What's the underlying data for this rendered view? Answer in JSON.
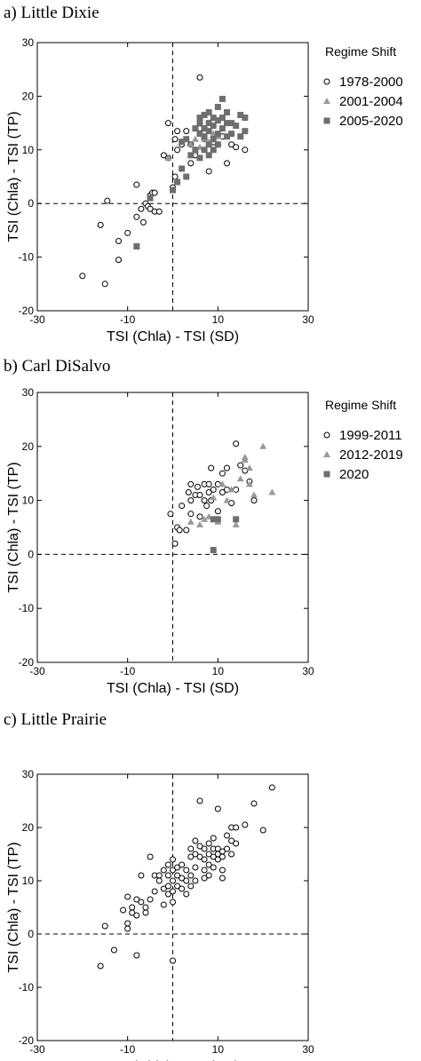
{
  "chart_data": [
    {
      "type": "scatter",
      "title": "a) Little Dixie",
      "xlabel": "TSI (Chla) - TSI (SD)",
      "ylabel": "TSI (Chla) - TSI (TP)",
      "xlim": [
        -30,
        30
      ],
      "ylim": [
        -20,
        30
      ],
      "xticks": [
        "-30",
        "-10",
        "10",
        "30"
      ],
      "yticks": [
        "-20",
        "-10",
        "0",
        "10",
        "20",
        "30"
      ],
      "grid": false,
      "reference_lines": {
        "x": 0,
        "y": 0
      },
      "legend_title": "Regime Shift",
      "legend_position": "right",
      "series": [
        {
          "name": "1978-2000",
          "marker": "circle-open",
          "color": "#000000",
          "points": [
            [
              -20,
              -13.5
            ],
            [
              -15,
              -15
            ],
            [
              -16,
              -4
            ],
            [
              -14.5,
              0.5
            ],
            [
              -12,
              -7
            ],
            [
              -12,
              -10.5
            ],
            [
              -10,
              -5.5
            ],
            [
              -8,
              -2.5
            ],
            [
              -8,
              3.5
            ],
            [
              -7,
              -1
            ],
            [
              -6.5,
              -3.5
            ],
            [
              -6,
              0
            ],
            [
              -5.5,
              -0.5
            ],
            [
              -5,
              1.5
            ],
            [
              -5,
              -1
            ],
            [
              -4.5,
              2
            ],
            [
              -4,
              2
            ],
            [
              -4,
              -1.5
            ],
            [
              -3,
              -1.5
            ],
            [
              -2,
              9
            ],
            [
              -1,
              8.5
            ],
            [
              -1,
              15
            ],
            [
              0,
              3
            ],
            [
              0.5,
              5
            ],
            [
              0.5,
              12
            ],
            [
              1,
              10
            ],
            [
              1,
              13.5
            ],
            [
              2,
              11
            ],
            [
              3,
              13.5
            ],
            [
              4,
              7.5
            ],
            [
              4,
              11
            ],
            [
              5,
              9
            ],
            [
              6,
              23.5
            ],
            [
              6,
              14
            ],
            [
              7,
              12
            ],
            [
              8,
              6
            ],
            [
              9,
              10.5
            ],
            [
              10,
              11
            ],
            [
              11,
              12.5
            ],
            [
              12,
              7.5
            ],
            [
              13,
              11
            ],
            [
              14,
              10.5
            ],
            [
              16,
              10
            ]
          ]
        },
        {
          "name": "2001-2004",
          "marker": "triangle",
          "color": "#9a9a9a",
          "points": [
            [
              -1,
              8.5
            ],
            [
              4,
              11
            ],
            [
              5,
              12
            ],
            [
              6,
              10.5
            ],
            [
              7,
              12
            ],
            [
              8,
              11.5
            ],
            [
              9,
              13
            ],
            [
              10,
              12.5
            ]
          ]
        },
        {
          "name": "2005-2020",
          "marker": "square",
          "color": "#6e6e6e",
          "points": [
            [
              -8,
              -8
            ],
            [
              -5,
              1
            ],
            [
              0,
              2.5
            ],
            [
              1,
              4
            ],
            [
              2,
              6.5
            ],
            [
              2,
              11.5
            ],
            [
              3,
              12
            ],
            [
              3,
              5
            ],
            [
              4,
              9
            ],
            [
              5,
              10
            ],
            [
              5,
              14
            ],
            [
              6,
              8.5
            ],
            [
              6,
              13
            ],
            [
              6,
              15
            ],
            [
              6,
              16
            ],
            [
              7,
              10
            ],
            [
              7,
              12.5
            ],
            [
              7,
              14
            ],
            [
              7,
              16.5
            ],
            [
              8,
              9
            ],
            [
              8,
              11
            ],
            [
              8,
              13.5
            ],
            [
              8,
              15
            ],
            [
              8,
              17
            ],
            [
              9,
              10
            ],
            [
              9,
              12
            ],
            [
              9,
              14.5
            ],
            [
              9,
              16
            ],
            [
              10,
              11
            ],
            [
              10,
              13
            ],
            [
              10,
              15.5
            ],
            [
              10,
              18
            ],
            [
              11,
              14
            ],
            [
              11,
              16
            ],
            [
              11,
              19.5
            ],
            [
              12,
              12.5
            ],
            [
              12,
              15
            ],
            [
              12,
              17
            ],
            [
              13,
              13
            ],
            [
              13,
              15
            ],
            [
              14,
              14.5
            ],
            [
              15,
              16.5
            ],
            [
              15,
              12.5
            ],
            [
              16,
              13.5
            ],
            [
              16,
              16
            ]
          ]
        }
      ]
    },
    {
      "type": "scatter",
      "title": "b) Carl DiSalvo",
      "xlabel": "TSI (Chla) - TSI (SD)",
      "ylabel": "TSI (Chla) - TSI (TP)",
      "xlim": [
        -30,
        30
      ],
      "ylim": [
        -20,
        30
      ],
      "xticks": [
        "-30",
        "-10",
        "10",
        "30"
      ],
      "yticks": [
        "-20",
        "-10",
        "0",
        "10",
        "20",
        "30"
      ],
      "grid": false,
      "reference_lines": {
        "x": 0,
        "y": 0
      },
      "legend_title": "Regime Shift",
      "legend_position": "right",
      "series": [
        {
          "name": "1999-2011",
          "marker": "circle-open",
          "color": "#000000",
          "points": [
            [
              -0.5,
              7.5
            ],
            [
              0.5,
              2
            ],
            [
              1,
              5
            ],
            [
              1.5,
              4.5
            ],
            [
              2,
              9
            ],
            [
              3,
              4.5
            ],
            [
              3.5,
              11.5
            ],
            [
              4,
              13
            ],
            [
              4,
              10
            ],
            [
              4,
              7.5
            ],
            [
              5,
              11
            ],
            [
              5.5,
              12.5
            ],
            [
              6,
              11
            ],
            [
              6,
              7
            ],
            [
              7,
              13
            ],
            [
              7,
              10
            ],
            [
              7.5,
              9
            ],
            [
              8,
              11.5
            ],
            [
              8,
              13
            ],
            [
              8.5,
              10
            ],
            [
              8.5,
              16
            ],
            [
              9,
              12
            ],
            [
              10,
              13
            ],
            [
              10,
              8
            ],
            [
              11,
              15
            ],
            [
              11,
              11.5
            ],
            [
              12,
              12
            ],
            [
              12,
              16
            ],
            [
              13,
              9.5
            ],
            [
              14,
              20.5
            ],
            [
              14,
              12
            ],
            [
              15,
              16.5
            ],
            [
              16,
              15.5
            ],
            [
              17,
              13.5
            ],
            [
              18,
              10
            ]
          ]
        },
        {
          "name": "2012-2019",
          "marker": "triangle",
          "color": "#9a9a9a",
          "points": [
            [
              4,
              6
            ],
            [
              6,
              5.5
            ],
            [
              7,
              6.5
            ],
            [
              8,
              7
            ],
            [
              9,
              10.5
            ],
            [
              10,
              6
            ],
            [
              11,
              13
            ],
            [
              12,
              10
            ],
            [
              13,
              12
            ],
            [
              14,
              5.5
            ],
            [
              15,
              14
            ],
            [
              16,
              17.5
            ],
            [
              16,
              18
            ],
            [
              17,
              16
            ],
            [
              17,
              13
            ],
            [
              18,
              11
            ],
            [
              20,
              20
            ],
            [
              22,
              11.5
            ]
          ]
        },
        {
          "name": "2020",
          "marker": "square",
          "color": "#6e6e6e",
          "points": [
            [
              9,
              6.5
            ],
            [
              9,
              0.8
            ],
            [
              14,
              6.5
            ],
            [
              10,
              6.5
            ]
          ]
        }
      ]
    },
    {
      "type": "scatter",
      "title": "c) Little Prairie",
      "xlabel": "TSI (Chla) - TSI (SD)",
      "ylabel": "TSI (Chla) - TSI (TP)",
      "xlim": [
        -30,
        30
      ],
      "ylim": [
        -20,
        30
      ],
      "xticks": [
        "-30",
        "-10",
        "10",
        "30"
      ],
      "yticks": [
        "-20",
        "-10",
        "0",
        "10",
        "20",
        "30"
      ],
      "grid": false,
      "reference_lines": {
        "x": 0,
        "y": 0
      },
      "series": [
        {
          "name": "",
          "marker": "circle-open",
          "color": "#000000",
          "points": [
            [
              -16,
              -6
            ],
            [
              -15,
              1.5
            ],
            [
              -13,
              -3
            ],
            [
              -11,
              4.5
            ],
            [
              -10,
              7
            ],
            [
              -10,
              2
            ],
            [
              -10,
              1
            ],
            [
              -9,
              5
            ],
            [
              -9,
              4
            ],
            [
              -8,
              3.5
            ],
            [
              -8,
              -4
            ],
            [
              -8,
              6.5
            ],
            [
              -7,
              6
            ],
            [
              -7,
              11
            ],
            [
              -6,
              5
            ],
            [
              -6,
              4
            ],
            [
              -5,
              14.5
            ],
            [
              -5,
              6.5
            ],
            [
              -4,
              8
            ],
            [
              -4,
              11
            ],
            [
              -3,
              11
            ],
            [
              -3,
              10
            ],
            [
              -2,
              12
            ],
            [
              -2,
              8.5
            ],
            [
              -2,
              5.5
            ],
            [
              -1,
              11
            ],
            [
              -1,
              13
            ],
            [
              -1,
              9
            ],
            [
              -1,
              7.5
            ],
            [
              0,
              12
            ],
            [
              0,
              10
            ],
            [
              0,
              14
            ],
            [
              0,
              8
            ],
            [
              0,
              6
            ],
            [
              0,
              -5
            ],
            [
              1,
              11
            ],
            [
              1,
              9
            ],
            [
              1,
              12.5
            ],
            [
              2,
              8.5
            ],
            [
              2,
              10.5
            ],
            [
              2,
              13
            ],
            [
              3,
              10
            ],
            [
              3,
              7.5
            ],
            [
              3,
              12
            ],
            [
              4,
              9
            ],
            [
              4,
              11
            ],
            [
              4,
              14.5
            ],
            [
              4,
              16
            ],
            [
              5,
              17.5
            ],
            [
              5,
              15
            ],
            [
              5,
              12.5
            ],
            [
              5,
              10
            ],
            [
              6,
              14.5
            ],
            [
              6,
              16.5
            ],
            [
              6,
              25
            ],
            [
              7,
              14
            ],
            [
              7,
              10.5
            ],
            [
              7,
              12
            ],
            [
              7,
              16
            ],
            [
              8,
              15
            ],
            [
              8,
              13
            ],
            [
              8,
              11
            ],
            [
              8,
              17
            ],
            [
              9,
              14.5
            ],
            [
              9,
              16
            ],
            [
              9,
              18
            ],
            [
              9,
              12.5
            ],
            [
              10,
              14
            ],
            [
              10,
              16
            ],
            [
              10,
              15
            ],
            [
              10,
              23.5
            ],
            [
              11,
              14.5
            ],
            [
              11,
              15.5
            ],
            [
              11,
              10.5
            ],
            [
              11,
              12
            ],
            [
              12,
              18.5
            ],
            [
              12,
              16
            ],
            [
              13,
              17.5
            ],
            [
              13,
              15
            ],
            [
              13,
              20
            ],
            [
              14,
              20
            ],
            [
              14,
              17
            ],
            [
              16,
              20.5
            ],
            [
              18,
              24.5
            ],
            [
              20,
              19.5
            ],
            [
              22,
              27.5
            ]
          ]
        }
      ]
    }
  ]
}
